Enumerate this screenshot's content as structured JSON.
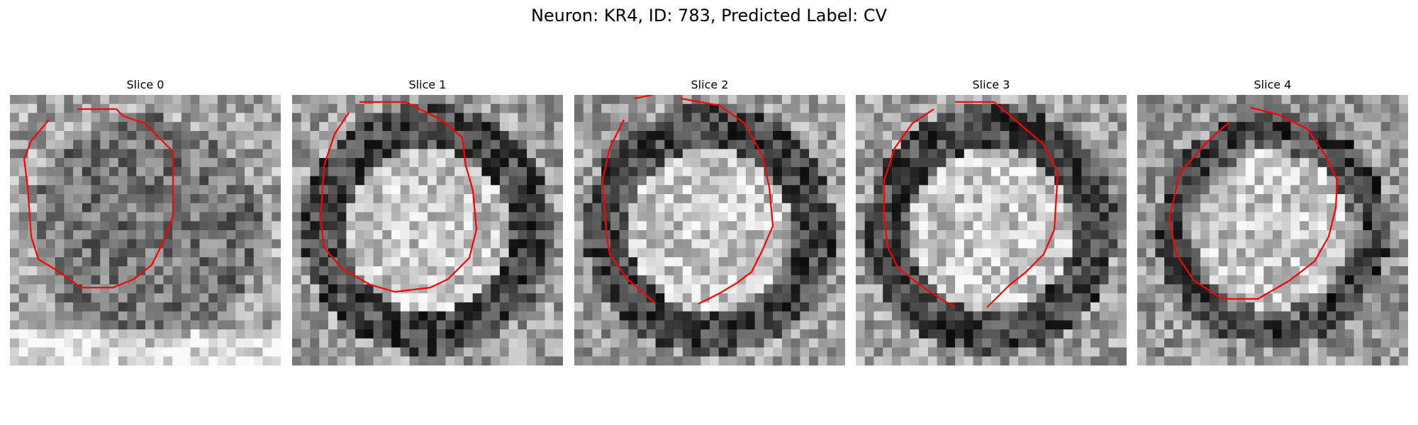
{
  "figure": {
    "title": "Neuron: KR4, ID: 783, Predicted Label: CV"
  },
  "panels": [
    {
      "title": "Slice 0",
      "seed": 11,
      "variant": "dark-mottled"
    },
    {
      "title": "Slice 1",
      "seed": 23,
      "variant": "bright-center"
    },
    {
      "title": "Slice 2",
      "seed": 37,
      "variant": "bright-center"
    },
    {
      "title": "Slice 3",
      "seed": 41,
      "variant": "bright-center"
    },
    {
      "title": "Slice 4",
      "seed": 53,
      "variant": "lobed"
    }
  ],
  "style": {
    "contour_color": "#ff0000",
    "colormap": "gray"
  }
}
